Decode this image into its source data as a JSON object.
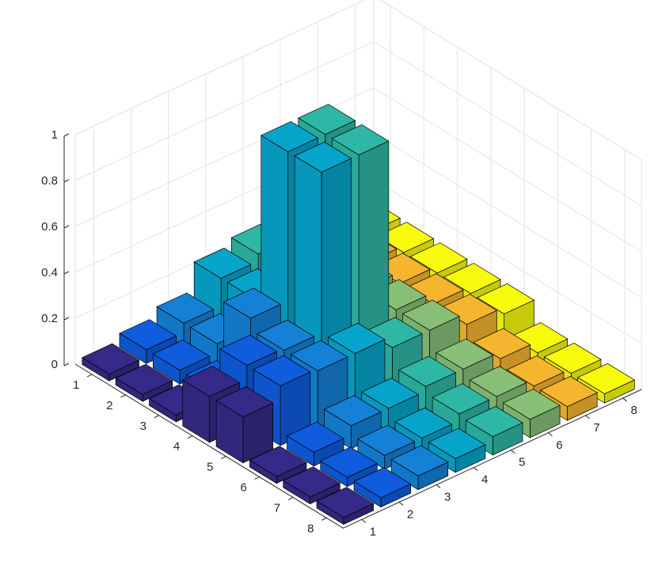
{
  "chart_data": {
    "type": "bar3d",
    "title": "",
    "xlabel": "",
    "ylabel": "",
    "zlabel": "",
    "row_ticks": [
      "1",
      "2",
      "3",
      "4",
      "5",
      "6",
      "7",
      "8"
    ],
    "col_ticks": [
      "1",
      "2",
      "3",
      "4",
      "5",
      "6",
      "7",
      "8"
    ],
    "z_ticks": [
      "0",
      "0.2",
      "0.4",
      "0.6",
      "0.8",
      "1"
    ],
    "zlim": [
      0,
      1
    ],
    "grid": true,
    "legend": "none",
    "column_colors": [
      "#352A87",
      "#0F5CDD",
      "#1481D6",
      "#06A4CA",
      "#2EB7A4",
      "#87BF77",
      "#F5B52F",
      "#F9FB0E"
    ],
    "edge_color": "#000000",
    "values": [
      [
        0.03,
        0.06,
        0.1,
        0.22,
        0.25,
        0.2,
        0.15,
        0.12
      ],
      [
        0.03,
        0.06,
        0.1,
        0.22,
        0.25,
        0.2,
        0.15,
        0.12
      ],
      [
        0.03,
        0.06,
        0.3,
        0.95,
        0.95,
        0.2,
        0.15,
        0.12
      ],
      [
        0.2,
        0.26,
        0.25,
        0.95,
        0.95,
        0.2,
        0.15,
        0.12
      ],
      [
        0.2,
        0.26,
        0.25,
        0.25,
        0.2,
        0.2,
        0.15,
        0.12
      ],
      [
        0.03,
        0.06,
        0.1,
        0.1,
        0.12,
        0.12,
        0.09,
        0.04
      ],
      [
        0.03,
        0.04,
        0.06,
        0.06,
        0.09,
        0.09,
        0.06,
        0.04
      ],
      [
        0.03,
        0.04,
        0.06,
        0.06,
        0.08,
        0.08,
        0.06,
        0.04
      ]
    ]
  }
}
